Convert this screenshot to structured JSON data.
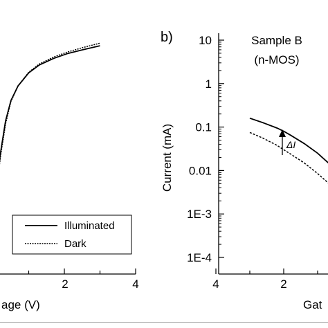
{
  "chart_data": [
    {
      "type": "line",
      "panel": "a",
      "title": "",
      "xlabel": "Gate Voltage (V)",
      "xlabel_visible": "age (V)",
      "ylabel": "",
      "xlim": [
        0,
        4
      ],
      "ylim_log": [
        0.0001,
        10
      ],
      "x_scale": "linear",
      "y_scale": "log",
      "x_ticks": [
        "2",
        "4"
      ],
      "legend": {
        "placement": "bottom-right",
        "entries": [
          "Illuminated",
          "Dark"
        ]
      },
      "series": [
        {
          "name": "Illuminated",
          "style": "solid",
          "x": [
            0.12,
            0.2,
            0.35,
            0.5,
            0.7,
            1.0,
            1.3,
            1.7,
            2.1,
            2.5,
            3.0
          ],
          "y": [
            0.008,
            0.03,
            0.15,
            0.4,
            0.8,
            1.5,
            2.2,
            3.0,
            3.8,
            4.5,
            5.5
          ]
        },
        {
          "name": "Dark",
          "style": "dotted",
          "x": [
            0.1,
            0.2,
            0.35,
            0.5,
            0.7,
            1.0,
            1.3,
            1.7,
            2.1,
            2.5,
            3.0
          ],
          "y": [
            0.006,
            0.025,
            0.13,
            0.38,
            0.8,
            1.55,
            2.3,
            3.2,
            4.1,
            5.0,
            6.2
          ]
        }
      ]
    },
    {
      "type": "line",
      "panel": "b",
      "panel_label": "b)",
      "title": "Sample B",
      "subtitle": "(n-MOS)",
      "xlabel": "Gate Voltage (V)",
      "xlabel_visible": "Gat",
      "ylabel": "Current (mA)",
      "x_scale": "linear",
      "x_reversed": true,
      "y_scale": "log",
      "ylim": [
        0.0001,
        10
      ],
      "x_ticks": [
        "4",
        "2"
      ],
      "y_ticks": [
        "10",
        "1",
        "0.1",
        "0.01",
        "1E-3",
        "1E-4"
      ],
      "annotation": "ΔI",
      "series": [
        {
          "name": "Illuminated",
          "style": "solid",
          "x": [
            3.0,
            2.6,
            2.2,
            2.0,
            1.8,
            1.4,
            1.0,
            0.6,
            0.3
          ],
          "y": [
            0.16,
            0.125,
            0.095,
            0.08,
            0.065,
            0.042,
            0.025,
            0.013,
            0.0072
          ]
        },
        {
          "name": "Dark",
          "style": "dotted",
          "x": [
            3.0,
            2.6,
            2.2,
            2.0,
            1.8,
            1.4,
            1.0,
            0.6,
            0.3
          ],
          "y": [
            0.075,
            0.055,
            0.038,
            0.03,
            0.024,
            0.015,
            0.0085,
            0.0045,
            0.0026
          ]
        }
      ]
    }
  ]
}
